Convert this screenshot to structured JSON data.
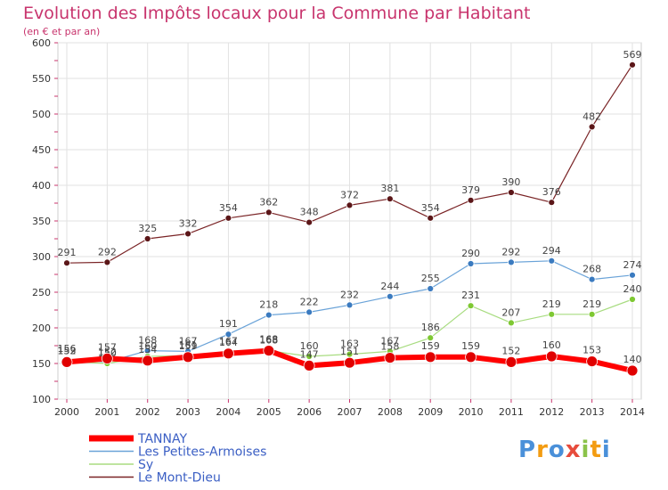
{
  "title": "Evolution des Impôts locaux pour la Commune par Habitant",
  "subtitle": "(en € et par an)",
  "logo": {
    "text": "Proxiti",
    "colors": [
      "#4a90d9",
      "#f39c12",
      "#4a90d9",
      "#e74c3c",
      "#8bc34a",
      "#f39c12",
      "#4a90d9"
    ]
  },
  "chart_data": {
    "type": "line",
    "x": [
      "2000",
      "2001",
      "2002",
      "2003",
      "2004",
      "2005",
      "2006",
      "2007",
      "2008",
      "2009",
      "2010",
      "2011",
      "2012",
      "2013",
      "2014"
    ],
    "ylim": [
      100,
      600
    ],
    "yticks": [
      "100",
      "150",
      "200",
      "250",
      "300",
      "350",
      "400",
      "450",
      "500",
      "550",
      "600"
    ],
    "grid": true,
    "legend_position": "bottom-left",
    "series": [
      {
        "name": "Le Mont-Dieu",
        "color": "#7a2426",
        "marker": "#5b1618",
        "width": 1.2,
        "marker_r": 3.5,
        "values": [
          291,
          292,
          325,
          332,
          354,
          362,
          348,
          372,
          381,
          354,
          379,
          390,
          376,
          482,
          569
        ],
        "labels": [
          "291",
          "292",
          "325",
          "332",
          "354",
          "362",
          "348",
          "372",
          "381",
          "354",
          "379",
          "390",
          "376",
          "482",
          "569"
        ]
      },
      {
        "name": "Les Petites-Armoises",
        "color": "#6aa3d8",
        "marker": "#3b7bc0",
        "width": 1.2,
        "marker_r": 3.5,
        "values": [
          156,
          152,
          168,
          167,
          191,
          218,
          222,
          232,
          244,
          255,
          290,
          292,
          294,
          268,
          274
        ],
        "labels": [
          "156",
          "152",
          "168",
          "167",
          "191",
          "218",
          "222",
          "232",
          "244",
          "255",
          "290",
          "292",
          "294",
          "268",
          "274"
        ]
      },
      {
        "name": "Sy",
        "color": "#a8dc80",
        "marker": "#7ec832",
        "width": 1.2,
        "marker_r": 3.5,
        "values": [
          153,
          150,
          160,
          161,
          167,
          168,
          160,
          163,
          167,
          186,
          231,
          207,
          219,
          219,
          240
        ],
        "labels": [
          "153",
          "150",
          "160",
          "161",
          "167",
          "168",
          "160",
          "163",
          "167",
          "186",
          "231",
          "207",
          "219",
          "219",
          "240"
        ]
      },
      {
        "name": "TANNAY",
        "color": "#ff0000",
        "marker": "#e00000",
        "width": 6,
        "marker_r": 6,
        "values": [
          152,
          157,
          154,
          159,
          164,
          168,
          147,
          151,
          158,
          159,
          159,
          152,
          160,
          153,
          140
        ],
        "labels": [
          "152",
          "157",
          "154",
          "159",
          "164",
          "168",
          "147",
          "151",
          "158",
          "159",
          "159",
          "152",
          "160",
          "153",
          "140"
        ]
      }
    ],
    "legend": [
      "TANNAY",
      "Les Petites-Armoises",
      "Sy",
      "Le Mont-Dieu"
    ]
  }
}
